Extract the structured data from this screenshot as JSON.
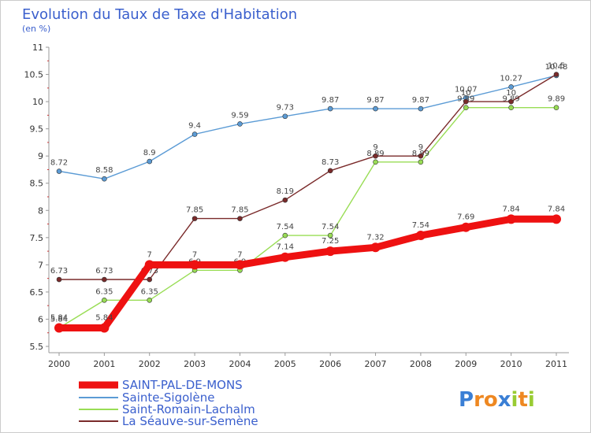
{
  "chart_data": {
    "type": "line",
    "title": "Evolution du Taux de Taxe d'Habitation",
    "subtitle": "(en %)",
    "x": [
      "2000",
      "2001",
      "2002",
      "2003",
      "2004",
      "2005",
      "2006",
      "2007",
      "2008",
      "2009",
      "2010",
      "2011"
    ],
    "ylim": [
      5.5,
      11
    ],
    "yticks": [
      "5.5",
      "6",
      "6.5",
      "7",
      "7.5",
      "8",
      "8.5",
      "9",
      "9.5",
      "10",
      "10.5",
      "11"
    ],
    "grid": false,
    "legend_position": "bottom-left",
    "series": [
      {
        "name": "Sainte-Sigolène",
        "color": "#5b9bd5",
        "values": [
          8.72,
          8.58,
          8.9,
          9.4,
          9.59,
          9.73,
          9.87,
          9.87,
          9.87,
          10.07,
          10.27,
          10.48
        ],
        "labels": [
          "8.72",
          "8.58",
          "8.9",
          "9.4",
          "9.59",
          "9.73",
          "9.87",
          "9.87",
          "9.87",
          "10.07",
          "10.27",
          "10.48"
        ]
      },
      {
        "name": "Saint-Romain-Lachalm",
        "color": "#99dd55",
        "values": [
          5.84,
          6.35,
          6.35,
          6.9,
          6.9,
          7.54,
          7.54,
          8.89,
          8.89,
          9.89,
          9.89,
          9.89
        ],
        "labels": [
          "5.84",
          "6.35",
          "6.35",
          "6.9",
          "6.9",
          "7.54",
          "7.54",
          "8.89",
          "8.89",
          "9.89",
          "9.89",
          "9.89"
        ]
      },
      {
        "name": "La Séauve-sur-Semène",
        "color": "#7a2a2a",
        "values": [
          6.73,
          6.73,
          6.73,
          7.85,
          7.85,
          8.19,
          8.73,
          9,
          9,
          10,
          10,
          10.5
        ],
        "labels": [
          "6.73",
          "6.73",
          "6.73",
          "7.85",
          "7.85",
          "8.19",
          "8.73",
          "9",
          "9",
          "10",
          "10",
          "10.5"
        ]
      },
      {
        "name": "SAINT-PAL-DE-MONS",
        "color": "#ee1111",
        "values": [
          5.84,
          5.84,
          7,
          7,
          7,
          7.14,
          7.25,
          7.32,
          7.54,
          7.69,
          7.84,
          7.84
        ],
        "labels": [
          "5.84",
          "5.84",
          "7",
          "7",
          "7",
          "7.14",
          "7.25",
          "7.32",
          "7.54",
          "7.69",
          "7.84",
          "7.84"
        ]
      }
    ],
    "legend_order": [
      "SAINT-PAL-DE-MONS",
      "Sainte-Sigolène",
      "Saint-Romain-Lachalm",
      "La Séauve-sur-Semène"
    ]
  },
  "logo": {
    "letters": [
      "P",
      "r",
      "o",
      "x",
      "i",
      "t",
      "i"
    ],
    "colors": [
      "#3a7fd5",
      "#ee8822",
      "#ee8822",
      "#3a7fd5",
      "#99cc33",
      "#ee8822",
      "#99cc33"
    ]
  }
}
